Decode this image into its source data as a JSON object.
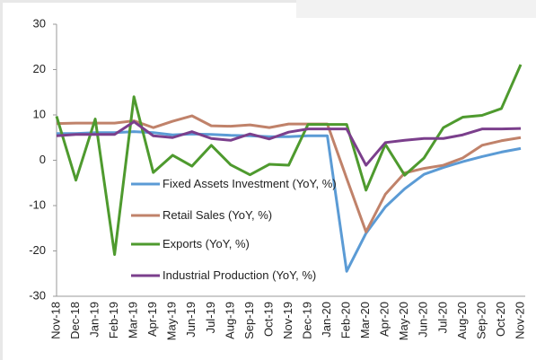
{
  "chart_data": {
    "type": "line",
    "categories": [
      "Nov-18",
      "Dec-18",
      "Jan-19",
      "Feb-19",
      "Mar-19",
      "Apr-19",
      "May-19",
      "Jun-19",
      "Jul-19",
      "Aug-19",
      "Sep-19",
      "Oct-19",
      "Nov-19",
      "Dec-19",
      "Jan-20",
      "Feb-20",
      "Mar-20",
      "Apr-20",
      "May-20",
      "Jun-20",
      "Jul-20",
      "Aug-20",
      "Sep-20",
      "Oct-20",
      "Nov-20"
    ],
    "series": [
      {
        "name": "Fixed Assets Investment (YoY, %)",
        "color": "#5b9bd5",
        "values": [
          5.9,
          5.9,
          6.1,
          6.1,
          6.3,
          6.1,
          5.6,
          5.8,
          5.7,
          5.5,
          5.4,
          5.2,
          5.2,
          5.4,
          5.4,
          -24.5,
          -16.1,
          -10.3,
          -6.3,
          -3.1,
          -1.6,
          -0.3,
          0.8,
          1.8,
          2.6
        ]
      },
      {
        "name": "Retail Sales (YoY, %)",
        "color": "#c0826a",
        "values": [
          8.1,
          8.2,
          8.2,
          8.2,
          8.7,
          7.2,
          8.6,
          9.8,
          7.6,
          7.5,
          7.8,
          7.2,
          8.0,
          8.0,
          8.0,
          -4.0,
          -15.8,
          -7.5,
          -2.8,
          -1.8,
          -1.1,
          0.5,
          3.3,
          4.3,
          5.0
        ]
      },
      {
        "name": "Exports (YoY, %)",
        "color": "#4e9a2e",
        "values": [
          9.7,
          -4.4,
          9.1,
          -20.8,
          14.0,
          -2.7,
          1.1,
          -1.3,
          3.3,
          -1.0,
          -3.2,
          -0.9,
          -1.1,
          7.9,
          7.9,
          7.9,
          -6.6,
          3.5,
          -3.3,
          0.5,
          7.2,
          9.5,
          9.9,
          11.4,
          21.1
        ]
      },
      {
        "name": "Industrial Production (YoY, %)",
        "color": "#7b3f8c",
        "values": [
          5.4,
          5.7,
          5.7,
          5.7,
          8.5,
          5.4,
          5.0,
          6.3,
          4.8,
          4.4,
          5.8,
          4.7,
          6.2,
          6.9,
          6.9,
          6.9,
          -1.1,
          3.9,
          4.4,
          4.8,
          4.8,
          5.6,
          6.9,
          6.9,
          7.0
        ]
      }
    ],
    "ylim": [
      -30,
      30
    ],
    "yticks": [
      -30,
      -20,
      -10,
      0,
      10,
      20,
      30
    ]
  }
}
